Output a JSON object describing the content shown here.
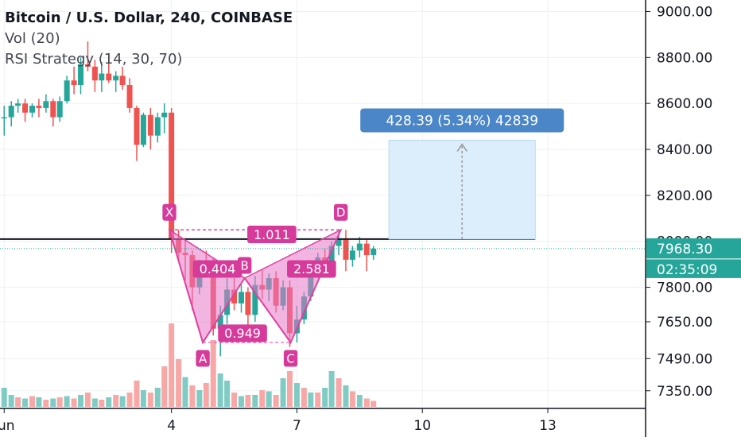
{
  "chart": {
    "title": "Bitcoin / U.S. Dollar, 240, COINBASE",
    "indicators": [
      "Vol (20)",
      "RSI Strategy (14, 30, 70)"
    ]
  },
  "colors": {
    "up": "#26a69a",
    "down": "#ef5350",
    "vol_up": "#80cbc4",
    "vol_down": "#f7a8a6",
    "pattern": "#e040a0",
    "pattern_fill": "#e878c8",
    "label_bg": "#d63a9a",
    "measure": "#4a86c8",
    "measure_fill": "#dceefb",
    "price_tag": "#26a69a",
    "grid": "#eef0f3",
    "axis_text": "#131722"
  },
  "chart_data": {
    "type": "candlestick",
    "ylim": [
      7280,
      9050
    ],
    "y_ticks": [
      9000,
      8800,
      8600,
      8400,
      8200,
      8000,
      7800,
      7650,
      7490,
      7350
    ],
    "y_tick_labels": [
      "9000.00",
      "8800.00",
      "8600.00",
      "8400.00",
      "8200.00",
      "8000.00",
      "7800.00",
      "7650.00",
      "7490.00",
      "7350.00"
    ],
    "x_ticks": [
      {
        "x": 0,
        "label": "Jun"
      },
      {
        "x": 4,
        "label": "4"
      },
      {
        "x": 7,
        "label": "7"
      },
      {
        "x": 10,
        "label": "10"
      },
      {
        "x": 13,
        "label": "13"
      }
    ],
    "xlim": [
      -0.1,
      15.3
    ],
    "candles": [
      [
        0.0,
        8540,
        8590,
        8460,
        8540
      ],
      [
        0.17,
        8540,
        8610,
        8500,
        8590
      ],
      [
        0.33,
        8590,
        8620,
        8560,
        8600
      ],
      [
        0.5,
        8600,
        8620,
        8520,
        8560
      ],
      [
        0.67,
        8560,
        8600,
        8540,
        8590
      ],
      [
        0.83,
        8590,
        8620,
        8540,
        8580
      ],
      [
        1.0,
        8580,
        8640,
        8560,
        8610
      ],
      [
        1.17,
        8610,
        8620,
        8500,
        8540
      ],
      [
        1.33,
        8540,
        8630,
        8520,
        8610
      ],
      [
        1.5,
        8610,
        8720,
        8600,
        8700
      ],
      [
        1.67,
        8700,
        8760,
        8640,
        8680
      ],
      [
        1.83,
        8680,
        8800,
        8640,
        8770
      ],
      [
        2.0,
        8770,
        8870,
        8740,
        8760
      ],
      [
        2.17,
        8760,
        8790,
        8650,
        8700
      ],
      [
        2.33,
        8700,
        8780,
        8650,
        8730
      ],
      [
        2.5,
        8730,
        8800,
        8690,
        8700
      ],
      [
        2.67,
        8700,
        8740,
        8650,
        8720
      ],
      [
        2.83,
        8720,
        8760,
        8660,
        8680
      ],
      [
        3.0,
        8680,
        8710,
        8560,
        8580
      ],
      [
        3.17,
        8580,
        8590,
        8350,
        8420
      ],
      [
        3.33,
        8420,
        8560,
        8410,
        8550
      ],
      [
        3.5,
        8550,
        8580,
        8400,
        8460
      ],
      [
        3.67,
        8460,
        8560,
        8430,
        8540
      ],
      [
        3.83,
        8540,
        8600,
        8470,
        8560
      ],
      [
        4.0,
        8560,
        8580,
        7950,
        8010
      ],
      [
        4.17,
        8010,
        8050,
        7920,
        7950
      ],
      [
        4.33,
        7950,
        8010,
        7830,
        7940
      ],
      [
        4.5,
        7940,
        7960,
        7700,
        7800
      ],
      [
        4.67,
        7800,
        7920,
        7770,
        7900
      ],
      [
        4.83,
        7900,
        7960,
        7860,
        7880
      ],
      [
        5.0,
        7880,
        7930,
        7590,
        7620
      ],
      [
        5.17,
        7620,
        7720,
        7500,
        7680
      ],
      [
        5.33,
        7680,
        7840,
        7640,
        7790
      ],
      [
        5.5,
        7790,
        7840,
        7700,
        7730
      ],
      [
        5.67,
        7730,
        7810,
        7690,
        7780
      ],
      [
        5.83,
        7780,
        7800,
        7620,
        7680
      ],
      [
        6.0,
        7680,
        7850,
        7650,
        7810
      ],
      [
        6.17,
        7810,
        7880,
        7750,
        7790
      ],
      [
        6.33,
        7790,
        7860,
        7740,
        7840
      ],
      [
        6.5,
        7840,
        7870,
        7690,
        7720
      ],
      [
        6.67,
        7720,
        7830,
        7700,
        7800
      ],
      [
        6.83,
        7800,
        7830,
        7540,
        7600
      ],
      [
        7.0,
        7600,
        7720,
        7560,
        7660
      ],
      [
        7.17,
        7660,
        7780,
        7640,
        7760
      ],
      [
        7.33,
        7760,
        7880,
        7740,
        7870
      ],
      [
        7.5,
        7870,
        7950,
        7850,
        7930
      ],
      [
        7.67,
        7930,
        7970,
        7880,
        7900
      ],
      [
        7.83,
        7900,
        8000,
        7880,
        7980
      ],
      [
        8.0,
        7980,
        8040,
        7940,
        8010
      ],
      [
        8.17,
        8010,
        8050,
        7870,
        7920
      ],
      [
        8.33,
        7920,
        7980,
        7890,
        7960
      ],
      [
        8.5,
        7960,
        8020,
        7930,
        7990
      ],
      [
        8.67,
        7990,
        8010,
        7870,
        7940
      ],
      [
        8.83,
        7940,
        7980,
        7920,
        7968
      ]
    ],
    "volume": [
      [
        0.0,
        0.16,
        1
      ],
      [
        0.17,
        0.1,
        1
      ],
      [
        0.33,
        0.08,
        0
      ],
      [
        0.5,
        0.07,
        1
      ],
      [
        0.67,
        0.09,
        0
      ],
      [
        0.83,
        0.08,
        1
      ],
      [
        1.0,
        0.06,
        0
      ],
      [
        1.17,
        0.07,
        1
      ],
      [
        1.33,
        0.08,
        0
      ],
      [
        1.5,
        0.09,
        1
      ],
      [
        1.67,
        0.07,
        0
      ],
      [
        1.83,
        0.1,
        1
      ],
      [
        2.0,
        0.12,
        0
      ],
      [
        2.17,
        0.07,
        1
      ],
      [
        2.33,
        0.06,
        0
      ],
      [
        2.5,
        0.08,
        1
      ],
      [
        2.67,
        0.1,
        0
      ],
      [
        2.83,
        0.09,
        1
      ],
      [
        3.0,
        0.12,
        0
      ],
      [
        3.17,
        0.22,
        0
      ],
      [
        3.33,
        0.14,
        1
      ],
      [
        3.5,
        0.12,
        0
      ],
      [
        3.67,
        0.16,
        1
      ],
      [
        3.83,
        0.34,
        0
      ],
      [
        4.0,
        0.7,
        0
      ],
      [
        4.17,
        0.4,
        0
      ],
      [
        4.33,
        0.25,
        1
      ],
      [
        4.5,
        0.18,
        0
      ],
      [
        4.67,
        0.14,
        1
      ],
      [
        4.83,
        0.2,
        0
      ],
      [
        5.0,
        0.56,
        0
      ],
      [
        5.17,
        0.28,
        1
      ],
      [
        5.33,
        0.22,
        1
      ],
      [
        5.5,
        0.12,
        0
      ],
      [
        5.67,
        0.09,
        1
      ],
      [
        5.83,
        0.1,
        0
      ],
      [
        6.0,
        0.1,
        1
      ],
      [
        6.17,
        0.14,
        0
      ],
      [
        6.33,
        0.13,
        1
      ],
      [
        6.5,
        0.1,
        0
      ],
      [
        6.67,
        0.24,
        1
      ],
      [
        6.83,
        0.3,
        0
      ],
      [
        7.0,
        0.2,
        1
      ],
      [
        7.17,
        0.16,
        0
      ],
      [
        7.33,
        0.12,
        1
      ],
      [
        7.5,
        0.12,
        0
      ],
      [
        7.67,
        0.16,
        1
      ],
      [
        7.83,
        0.3,
        1
      ],
      [
        8.0,
        0.24,
        0
      ],
      [
        8.17,
        0.18,
        1
      ],
      [
        8.33,
        0.13,
        0
      ],
      [
        8.5,
        0.1,
        1
      ],
      [
        8.67,
        0.07,
        0
      ],
      [
        8.83,
        0.05,
        0
      ]
    ],
    "horizontal_line": 8010,
    "harmonic_pattern": {
      "points": [
        {
          "label": "X",
          "x": 3.95,
          "y": 8050
        },
        {
          "label": "A",
          "x": 4.75,
          "y": 7560
        },
        {
          "label": "B",
          "x": 5.75,
          "y": 7840
        },
        {
          "label": "C",
          "x": 6.85,
          "y": 7560
        },
        {
          "label": "D",
          "x": 8.05,
          "y": 8050
        }
      ],
      "ratios": [
        {
          "label": "1.011",
          "x": 6.4,
          "y": 8030
        },
        {
          "label": "0.404",
          "x": 5.1,
          "y": 7880
        },
        {
          "label": "2.581",
          "x": 7.35,
          "y": 7880
        },
        {
          "label": "0.949",
          "x": 5.7,
          "y": 7600
        }
      ]
    },
    "measure": {
      "x_start": 9.2,
      "x_end": 12.7,
      "y_start": 8010,
      "y_end": 8440,
      "label": "428.39 (5.34%) 42839"
    },
    "last_price": "7968.30",
    "countdown": "02:35:09"
  }
}
